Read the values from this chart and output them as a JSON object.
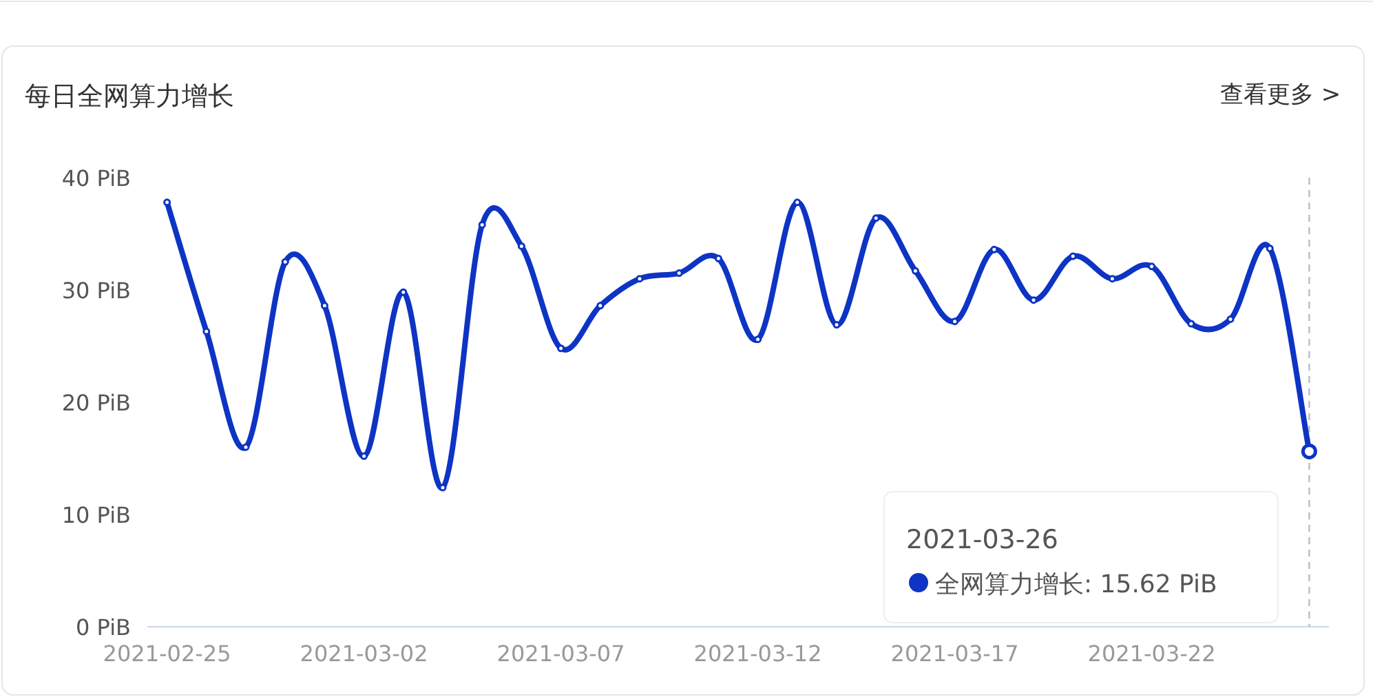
{
  "chart_data": {
    "type": "line",
    "title": "每日全网算力增长",
    "annotations": [
      "查看更多 >",
      "2021-03-26",
      "全网算力增长: 15.62 PiB"
    ],
    "x": [
      "2021-02-25",
      "2021-02-26",
      "2021-02-27",
      "2021-02-28",
      "2021-03-01",
      "2021-03-02",
      "2021-03-03",
      "2021-03-04",
      "2021-03-05",
      "2021-03-06",
      "2021-03-07",
      "2021-03-08",
      "2021-03-09",
      "2021-03-10",
      "2021-03-11",
      "2021-03-12",
      "2021-03-13",
      "2021-03-14",
      "2021-03-15",
      "2021-03-16",
      "2021-03-17",
      "2021-03-18",
      "2021-03-19",
      "2021-03-20",
      "2021-03-21",
      "2021-03-22",
      "2021-03-23",
      "2021-03-24",
      "2021-03-25",
      "2021-03-26"
    ],
    "series": [
      {
        "color": "#0d34c4",
        "values": [
          37.8,
          26.3,
          16.0,
          32.5,
          28.6,
          15.2,
          29.8,
          12.4,
          35.8,
          33.9,
          24.8,
          28.6,
          31.0,
          31.5,
          32.8,
          25.6,
          37.8,
          26.9,
          36.4,
          31.7,
          27.2,
          33.6,
          29.1,
          33.0,
          31.0,
          32.1,
          27.0,
          27.4,
          33.7,
          15.62
        ]
      }
    ],
    "xlim": [
      "2021-02-24T12:00",
      "2021-03-26T12:00"
    ],
    "xticks": [
      "2021-02-25",
      "2021-03-02",
      "2021-03-07",
      "2021-03-12",
      "2021-03-17",
      "2021-03-22"
    ],
    "ylim": [
      0,
      40
    ],
    "yticks": [
      {
        "value": 0,
        "label": "0 PiB"
      },
      {
        "value": 10,
        "label": "10 PiB"
      },
      {
        "value": 20,
        "label": "20 PiB"
      },
      {
        "value": 30,
        "label": "30 PiB"
      },
      {
        "value": 40,
        "label": "40 PiB"
      }
    ],
    "ref_lines": [
      {
        "axis": "x",
        "value": "2021-03-26",
        "color": "#b8bcc8",
        "line_style": "dashed"
      }
    ],
    "marker": "circle",
    "line_style": "solid",
    "grid": false
  }
}
